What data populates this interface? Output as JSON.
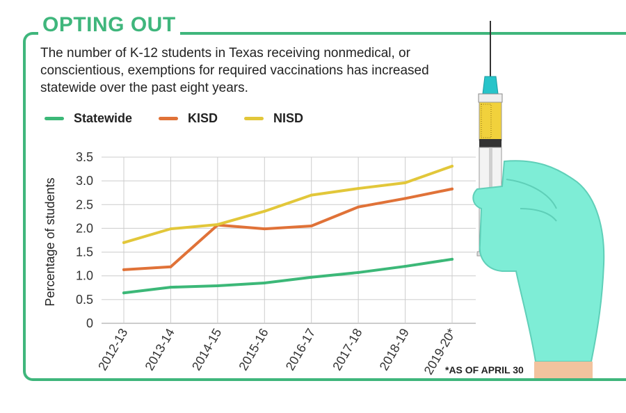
{
  "header": {
    "title": "OPTING OUT",
    "description": "The number of K-12 students in Texas receiving nonmedical, or conscientious, exemptions for required vaccinations has increased statewide over the past eight years.",
    "footnote": "*AS OF APRIL 30"
  },
  "colors": {
    "brand_green": "#3fb67c",
    "statewide": "#3cb878",
    "kisd": "#e07238",
    "nisd": "#e2c73a",
    "glove": "#7eedd6",
    "glove_outline": "#5fcfb8",
    "grid": "#cccccc"
  },
  "illustration": {
    "icon": "syringe-in-gloved-hand-icon"
  },
  "chart_data": {
    "type": "line",
    "categories": [
      "2012-13",
      "2013-14",
      "2014-15",
      "2015-16",
      "2016-17",
      "2017-18",
      "2018-19",
      "2019-20*"
    ],
    "ylabel": "Percentage of students",
    "xlabel": "",
    "ylim": [
      0,
      3.5
    ],
    "yticks": [
      {
        "value": 0,
        "label": "0"
      },
      {
        "value": 0.5,
        "label": "0.5"
      },
      {
        "value": 1.0,
        "label": "1.0"
      },
      {
        "value": 1.5,
        "label": "1.5"
      },
      {
        "value": 2.0,
        "label": "2.0"
      },
      {
        "value": 2.5,
        "label": "2.5"
      },
      {
        "value": 3.0,
        "label": "3.0"
      },
      {
        "value": 3.5,
        "label": "3.5"
      }
    ],
    "grid": true,
    "legend_position": "top-left",
    "series": [
      {
        "name": "Statewide",
        "key": "statewide",
        "values": [
          0.64,
          0.76,
          0.79,
          0.85,
          0.97,
          1.07,
          1.2,
          1.35
        ]
      },
      {
        "name": "KISD",
        "key": "kisd",
        "values": [
          1.13,
          1.19,
          2.07,
          1.99,
          2.05,
          2.45,
          2.63,
          2.83
        ]
      },
      {
        "name": "NISD",
        "key": "nisd",
        "values": [
          1.7,
          1.99,
          2.08,
          2.36,
          2.7,
          2.84,
          2.96,
          3.31
        ]
      }
    ]
  }
}
